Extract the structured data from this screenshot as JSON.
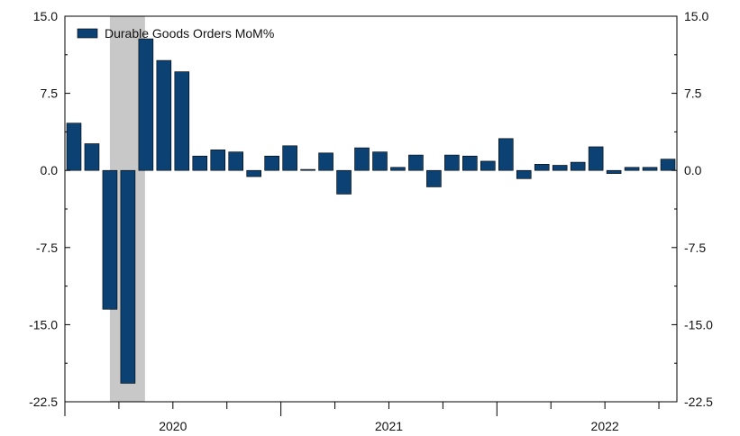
{
  "chart_data": {
    "type": "bar",
    "title": "",
    "xlabel": "",
    "ylabel": "",
    "ylim": [
      -22.5,
      15.0
    ],
    "yticks": [
      "15.0",
      "7.5",
      "0.0",
      "-7.5",
      "-15.0",
      "-22.5"
    ],
    "year_labels": [
      {
        "label": "2020",
        "month_index": 6
      },
      {
        "label": "2021",
        "month_index": 18
      },
      {
        "label": "2022",
        "month_index": 30
      }
    ],
    "start": "2020-01",
    "series": [
      {
        "name": "Durable Goods Orders MoM%",
        "color": "#0b4173",
        "values": [
          4.6,
          2.6,
          -13.5,
          -20.7,
          12.8,
          10.7,
          9.6,
          1.4,
          2.0,
          1.8,
          -0.6,
          1.4,
          2.4,
          0.1,
          1.7,
          -2.3,
          2.2,
          1.8,
          0.3,
          1.5,
          -1.6,
          1.5,
          1.4,
          0.9,
          3.1,
          -0.8,
          0.6,
          0.5,
          0.8,
          2.3,
          -0.3,
          0.3,
          0.3,
          1.1
        ]
      }
    ],
    "recession_shading": {
      "from_index": 2,
      "to_index": 3,
      "color": "#c8c8c8"
    },
    "legend_position": "top-left",
    "grid": false
  }
}
